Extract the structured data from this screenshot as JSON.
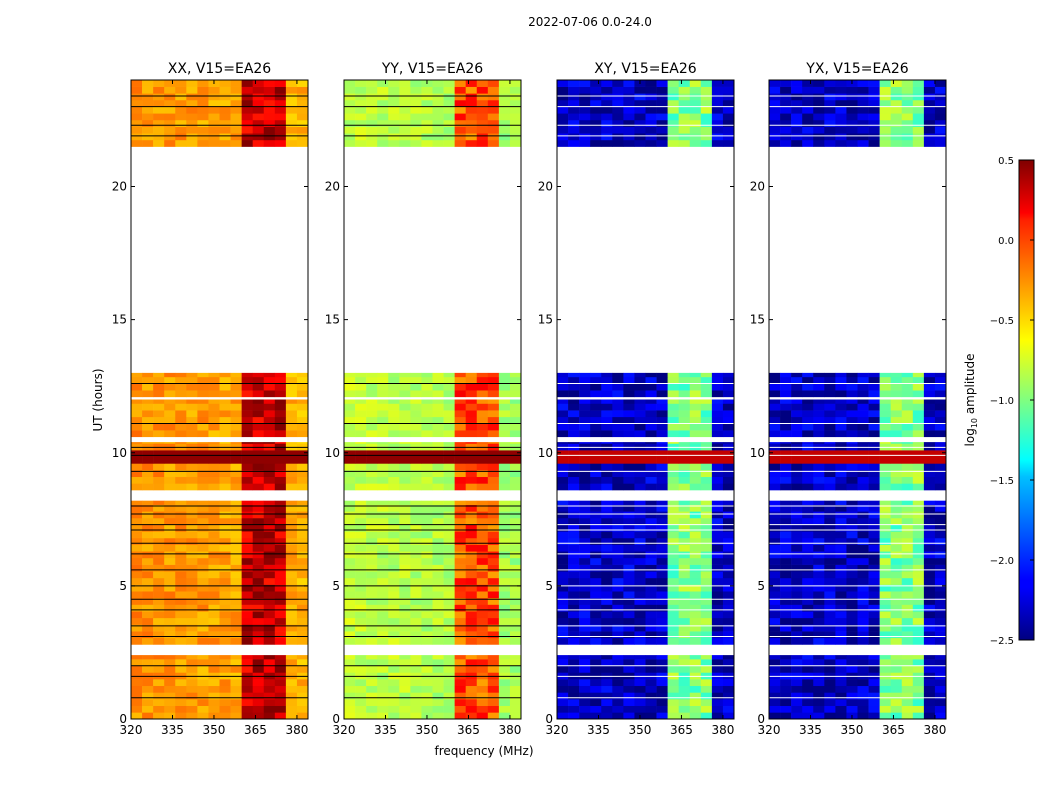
{
  "chart_data": {
    "type": "heatmap",
    "suptitle": "2022-07-06 0.0-24.0",
    "xlabel": "frequency (MHz)",
    "ylabel": "UT (hours)",
    "xlim": [
      320,
      384
    ],
    "ylim": [
      0,
      24
    ],
    "xticks": [
      320,
      335,
      350,
      365,
      380
    ],
    "yticks": [
      0,
      5,
      10,
      15,
      20
    ],
    "data_coverage_hours": [
      [
        0,
        2.4
      ],
      [
        2.8,
        8.2
      ],
      [
        8.6,
        10.4
      ],
      [
        10.6,
        12.0
      ],
      [
        12.1,
        13.0
      ],
      [
        21.5,
        24.0
      ]
    ],
    "flagged_gaps_hours": [
      [
        2.4,
        2.8
      ],
      [
        8.2,
        8.6
      ],
      [
        13.0,
        21.5
      ]
    ],
    "panels": [
      {
        "title": "XX, V15=EA26",
        "typical_log_amp": -0.3,
        "rfi_log_amp": 0.3
      },
      {
        "title": "YY, V15=EA26",
        "typical_log_amp": -0.8,
        "rfi_log_amp": -0.1
      },
      {
        "title": "XY, V15=EA26",
        "typical_log_amp": -2.3,
        "rfi_log_amp": -1.0
      },
      {
        "title": "YX, V15=EA26",
        "typical_log_amp": -2.3,
        "rfi_log_amp": -1.0
      }
    ],
    "colorbar": {
      "label": "log",
      "label_sub": "10",
      "label_rest": " amplitude",
      "min": -2.5,
      "max": 0.5,
      "ticks": [
        0.5,
        0.0,
        -0.5,
        -1.0,
        -1.5,
        -2.0,
        -2.5
      ],
      "tick_labels": [
        "0.5",
        "0.0",
        "−0.5",
        "−1.0",
        "−1.5",
        "−2.0",
        "−2.5"
      ],
      "colormap": "jet"
    }
  }
}
